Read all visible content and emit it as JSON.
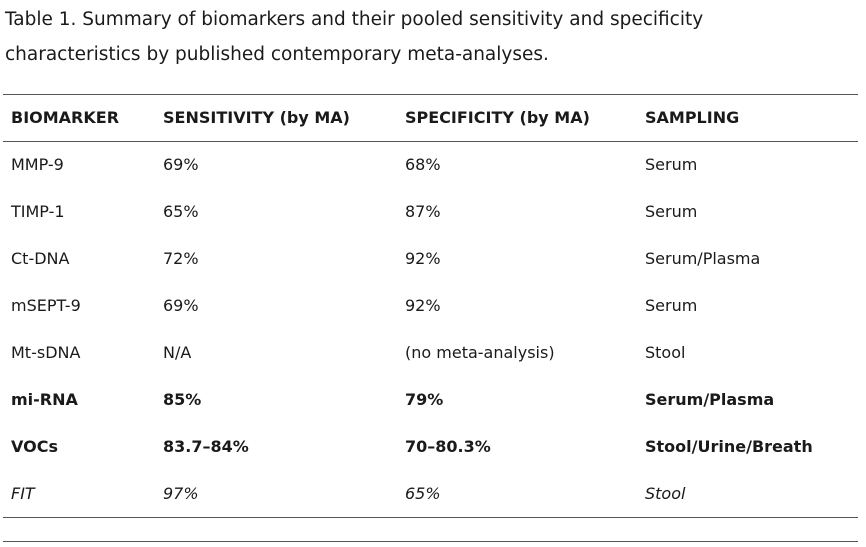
{
  "caption": {
    "line1": "Table 1. Summary of biomarkers and their pooled sensitivity and specificity",
    "line2": "characteristics by published contemporary meta-analyses."
  },
  "table": {
    "headers": [
      "BIOMARKER",
      "SENSITIVITY (by MA)",
      "SPECIFICITY (by MA)",
      "SAMPLING"
    ],
    "rows": [
      {
        "cells": [
          "MMP-9",
          "69%",
          "68%",
          "Serum"
        ],
        "style": "normal"
      },
      {
        "cells": [
          "TIMP-1",
          "65%",
          "87%",
          "Serum"
        ],
        "style": "normal"
      },
      {
        "cells": [
          "Ct-DNA",
          "72%",
          "92%",
          "Serum/Plasma"
        ],
        "style": "normal"
      },
      {
        "cells": [
          "mSEPT-9",
          "69%",
          "92%",
          "Serum"
        ],
        "style": "normal"
      },
      {
        "cells": [
          "Mt-sDNA",
          "N/A",
          "(no meta-analysis)",
          "Stool"
        ],
        "style": "normal"
      },
      {
        "cells": [
          "mi-RNA",
          "85%",
          "79%",
          "Serum/Plasma"
        ],
        "style": "bold"
      },
      {
        "cells": [
          "VOCs",
          "83.7–84%",
          "70–80.3%",
          "Stool/Urine/Breath"
        ],
        "style": "bold"
      },
      {
        "cells": [
          "FIT",
          "97%",
          "65%",
          "Stool"
        ],
        "style": "italic"
      }
    ]
  }
}
